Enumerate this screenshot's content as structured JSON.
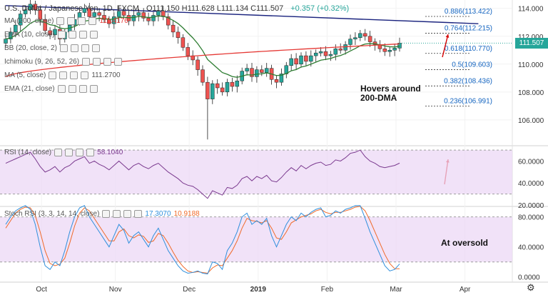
{
  "header": {
    "title": "U.S. Dollar / Japanese Yen, 1D, FXCM",
    "ohlc": "O111.150  H111.628  L111.134  C111.507",
    "change": "+0.357 (+0.32%)"
  },
  "indicators": [
    {
      "label": "MA (200, close)",
      "value": "111.4176",
      "color": "#e53935"
    },
    {
      "label": "EMA (10, close)",
      "value": "",
      "color": "#555555"
    },
    {
      "label": "BB (20, close, 2)",
      "value": "",
      "color": "#555555"
    },
    {
      "label": "Ichimoku (9, 26, 52, 26)",
      "value": "",
      "color": "#555555"
    },
    {
      "label": "MA (5, close)",
      "value": "111.2700",
      "color": "#555555"
    },
    {
      "label": "EMA (21, close)",
      "value": "",
      "color": "#555555"
    }
  ],
  "rsi_label": {
    "label": "RSI (14, close)",
    "value": "58.1040"
  },
  "stoch_label": {
    "label": "Stoch RSI (3, 3, 14, 14, close)",
    "k": "17.3070",
    "d": "10.9188"
  },
  "price_tag": "111.507",
  "annotations": {
    "hovers": [
      "Hovers around",
      "200-DMA"
    ],
    "oversold": "At oversold"
  },
  "colors": {
    "up": "#26a69a",
    "down": "#ef5350",
    "ma200": "#e53935",
    "ema": "#2e7d32",
    "trend": "#1a237e",
    "rsi": "#7b3a8f",
    "stoch_k": "#2f8fdc",
    "stoch_d": "#f06a2a",
    "band_fill": "#ecd8f5",
    "arrow": "#d50000"
  },
  "chart_data": [
    {
      "type": "candlestick",
      "ylim": [
        104.2,
        114.6
      ],
      "y_ticks": [
        "114.000",
        "112.000",
        "110.000",
        "108.000",
        "106.000"
      ],
      "x_ticks": [
        "Oct",
        "Nov",
        "Dec",
        "2019",
        "Feb",
        "Mar",
        "Apr"
      ],
      "fib_levels": [
        {
          "label": "0.886(113.422)",
          "value": 113.422
        },
        {
          "label": "0.764(112.215)",
          "value": 112.215
        },
        {
          "label": "0.618(110.770)",
          "value": 110.77
        },
        {
          "label": "0.5(109.603)",
          "value": 109.603
        },
        {
          "label": "0.382(108.436)",
          "value": 108.436
        },
        {
          "label": "0.236(106.991)",
          "value": 106.991
        }
      ],
      "trendline": [
        [
          0,
          114.2
        ],
        [
          96,
          112.9
        ]
      ],
      "closes": [
        111.8,
        112.3,
        112.8,
        113.6,
        113.9,
        114.3,
        113.9,
        113.2,
        112.4,
        112.1,
        112.5,
        111.8,
        112.3,
        112.8,
        113.2,
        113.7,
        114.0,
        113.4,
        113.7,
        113.5,
        113.2,
        112.9,
        113.4,
        113.8,
        113.5,
        113.1,
        113.5,
        113.7,
        113.3,
        113.1,
        113.5,
        113.8,
        113.4,
        112.8,
        112.3,
        111.9,
        111.2,
        110.6,
        110.3,
        109.6,
        108.7,
        107.5,
        108.6,
        108.3,
        108.0,
        108.7,
        108.4,
        108.8,
        109.5,
        109.7,
        109.1,
        109.6,
        109.4,
        109.7,
        108.9,
        108.7,
        109.3,
        109.9,
        110.4,
        110.0,
        110.6,
        110.2,
        110.6,
        110.8,
        110.9,
        110.6,
        110.7,
        111.1,
        111.0,
        111.4,
        111.8,
        111.9,
        112.2,
        112.0,
        111.6,
        111.4,
        111.1,
        110.9,
        111.0,
        111.15,
        111.507
      ]
    },
    {
      "type": "line",
      "name": "RSI",
      "ylim": [
        20,
        72
      ],
      "y_ticks": [
        "60.0000",
        "40.0000",
        "20.0000"
      ],
      "band": [
        30,
        70
      ],
      "values": [
        58,
        60,
        62,
        64,
        66,
        68,
        62,
        55,
        50,
        52,
        55,
        50,
        54,
        56,
        60,
        62,
        64,
        58,
        60,
        57,
        55,
        52,
        56,
        60,
        56,
        52,
        56,
        58,
        55,
        53,
        56,
        58,
        54,
        50,
        47,
        44,
        40,
        38,
        37,
        34,
        30,
        26,
        33,
        31,
        29,
        36,
        35,
        38,
        44,
        46,
        42,
        46,
        44,
        47,
        42,
        41,
        45,
        50,
        54,
        51,
        56,
        53,
        56,
        58,
        59,
        56,
        57,
        61,
        60,
        63,
        67,
        68,
        70,
        64,
        60,
        58,
        55,
        54,
        55,
        56,
        58.1
      ]
    },
    {
      "type": "line",
      "name": "Stoch RSI",
      "ylim": [
        -5,
        92
      ],
      "y_ticks": [
        "80.0000",
        "40.0000",
        "0.0000"
      ],
      "band": [
        20,
        80
      ],
      "series": [
        {
          "name": "K",
          "values": [
            70,
            80,
            88,
            92,
            95,
            90,
            70,
            40,
            15,
            10,
            20,
            15,
            35,
            60,
            80,
            92,
            95,
            80,
            70,
            60,
            50,
            40,
            55,
            70,
            62,
            45,
            55,
            60,
            50,
            40,
            55,
            65,
            50,
            35,
            25,
            15,
            8,
            5,
            6,
            8,
            5,
            4,
            20,
            18,
            10,
            35,
            45,
            60,
            80,
            85,
            70,
            75,
            70,
            78,
            55,
            40,
            55,
            70,
            80,
            75,
            85,
            80,
            86,
            90,
            92,
            80,
            82,
            88,
            85,
            90,
            92,
            95,
            95,
            78,
            60,
            45,
            30,
            15,
            8,
            10,
            17.3
          ]
        },
        {
          "name": "D",
          "values": [
            65,
            75,
            85,
            90,
            93,
            92,
            82,
            60,
            35,
            18,
            15,
            17,
            25,
            45,
            68,
            85,
            92,
            88,
            78,
            68,
            58,
            48,
            48,
            60,
            64,
            55,
            52,
            56,
            54,
            46,
            48,
            58,
            55,
            45,
            33,
            22,
            14,
            8,
            6,
            7,
            6,
            5,
            12,
            16,
            15,
            25,
            35,
            48,
            65,
            78,
            75,
            74,
            72,
            75,
            65,
            52,
            50,
            60,
            72,
            76,
            80,
            82,
            84,
            88,
            90,
            86,
            84,
            86,
            86,
            88,
            90,
            93,
            94,
            88,
            75,
            60,
            45,
            30,
            18,
            11,
            10.9
          ]
        }
      ]
    }
  ]
}
